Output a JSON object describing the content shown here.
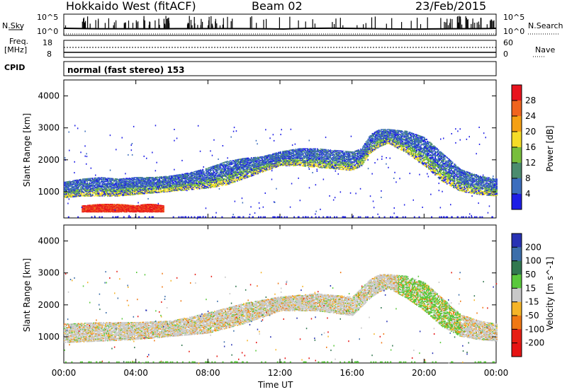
{
  "header": {
    "radar": "Hokkaido West (fitACF)",
    "beam": "Beam 02",
    "date": "23/Feb/2015"
  },
  "top_panel": {
    "nsky_label": "N.Sky",
    "nsearch_label": "N.Search",
    "noise_tick_top": "10^5",
    "noise_tick_bottom": "10^0",
    "freq_label": "Freq.",
    "freq_unit": "[MHz]",
    "freq_tick_top": "18",
    "freq_tick_bottom": "8",
    "nave_label": "Nave",
    "nave_tick_top": "60",
    "nave_tick_bottom": "0",
    "cpid_label": "CPID",
    "cpid_value": "normal (fast stereo) 153"
  },
  "colorbars": {
    "power": {
      "label": "Power [dB]",
      "ticks": [
        "28",
        "24",
        "20",
        "16",
        "12",
        "8",
        "4"
      ],
      "colors": [
        "#e8141e",
        "#f0641e",
        "#f5a014",
        "#f5dc28",
        "#78be3c",
        "#4b8c6e",
        "#3c6ebe",
        "#1e1ee6"
      ]
    },
    "velocity": {
      "label": "Velocity [m s^-1]",
      "ticks": [
        "200",
        "100",
        "50",
        "15",
        "-15",
        "-50",
        "-100",
        "-200"
      ],
      "colors": [
        "#2832b4",
        "#3c6eaa",
        "#327850",
        "#5ac83c",
        "#c8c8c8",
        "#f5b428",
        "#f07814",
        "#e61e14",
        "#e61414"
      ]
    }
  },
  "axes": {
    "ylabel": "Slant Range [km]",
    "xlabel": "Time UT",
    "xticks": [
      "00:00",
      "04:00",
      "08:00",
      "12:00",
      "16:00",
      "20:00",
      "00:00"
    ]
  },
  "chart_data": [
    {
      "type": "heatmap",
      "panel": "power",
      "ylabel": "Slant Range [km]",
      "xlabel": "Time UT",
      "yticks": [
        1000,
        2000,
        3000,
        4000
      ],
      "ylim": [
        180,
        4500
      ],
      "xlim": [
        "00:00",
        "24:00"
      ],
      "xticks": [
        "00:00",
        "04:00",
        "08:00",
        "12:00",
        "16:00",
        "20:00",
        "00:00"
      ],
      "colorbar_label": "Power [dB]",
      "colorbar_ticks": [
        28,
        24,
        20,
        16,
        12,
        8,
        4
      ],
      "bands": [
        {
          "t": [
            0.0,
            1.0,
            2.0,
            3.0,
            4.0,
            5.0,
            6.0,
            7.0,
            8.0,
            9.0,
            10.0,
            11.0,
            12.0,
            13.0,
            14.0,
            15.0,
            16.0,
            16.5,
            17.0,
            17.5,
            18.0,
            19.0,
            20.0,
            21.0,
            22.0,
            23.0,
            24.0
          ],
          "upper_km": [
            1300,
            1400,
            1450,
            1400,
            1450,
            1450,
            1500,
            1600,
            1750,
            1950,
            2050,
            2100,
            2250,
            2350,
            2350,
            2300,
            2250,
            2350,
            2800,
            2950,
            2950,
            2900,
            2700,
            2200,
            1700,
            1500,
            1400
          ],
          "lower_km": [
            800,
            850,
            850,
            850,
            900,
            950,
            1000,
            1050,
            1100,
            1200,
            1400,
            1600,
            1800,
            1800,
            1750,
            1700,
            1650,
            1800,
            2200,
            2400,
            2500,
            2200,
            1800,
            1300,
            1000,
            900,
            850
          ],
          "peak_power_db": 18
        },
        {
          "t": [
            1.0,
            2.0,
            3.0,
            4.0,
            4.5,
            5.0,
            5.5
          ],
          "upper_km": [
            550,
            600,
            600,
            550,
            600,
            600,
            550
          ],
          "lower_km": [
            350,
            350,
            350,
            350,
            350,
            350,
            350
          ],
          "peak_power_db": 28
        }
      ]
    },
    {
      "type": "heatmap",
      "panel": "velocity",
      "ylabel": "Slant Range [km]",
      "xlabel": "Time UT",
      "yticks": [
        1000,
        2000,
        3000,
        4000
      ],
      "ylim": [
        180,
        4500
      ],
      "xlim": [
        "00:00",
        "24:00"
      ],
      "xticks": [
        "00:00",
        "04:00",
        "08:00",
        "12:00",
        "16:00",
        "20:00",
        "00:00"
      ],
      "colorbar_label": "Velocity [m s^-1]",
      "colorbar_ticks": [
        200,
        100,
        50,
        15,
        -15,
        -50,
        -100,
        -200
      ],
      "bands": [
        {
          "t": [
            0.0,
            2.0,
            4.0,
            6.0,
            8.0,
            10.0,
            12.0,
            14.0,
            16.0,
            17.0,
            17.5,
            18.0,
            19.0,
            20.0,
            21.0,
            22.0,
            23.0,
            24.0
          ],
          "upper_km": [
            1400,
            1450,
            1450,
            1500,
            1750,
            2050,
            2250,
            2350,
            2250,
            2800,
            2950,
            2950,
            2900,
            2700,
            2200,
            1700,
            1500,
            1400
          ],
          "lower_km": [
            800,
            850,
            900,
            1000,
            1100,
            1400,
            1800,
            1800,
            1650,
            2200,
            2400,
            2500,
            2200,
            1800,
            1300,
            1000,
            900,
            850
          ],
          "dominant_velocity_ms": 0
        }
      ]
    }
  ]
}
